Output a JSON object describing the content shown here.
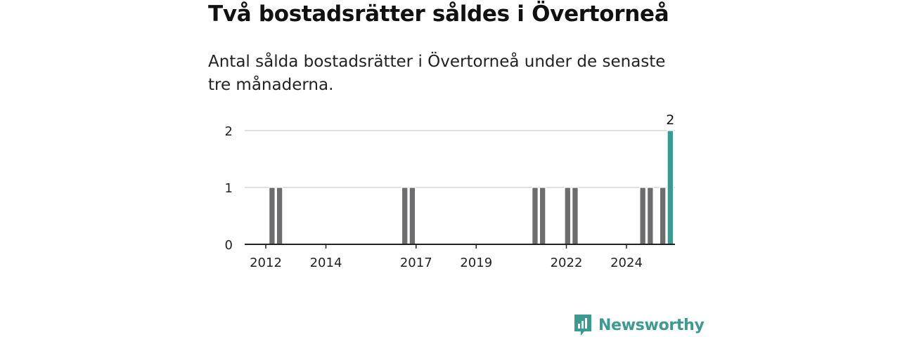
{
  "header": {
    "title": "Två bostadsrätter såldes i Övertorneå",
    "subtitle": "Antal sålda bostadsrätter i Övertorneå under de senaste tre månaderna."
  },
  "brand": {
    "name": "Newsworthy",
    "icon": "bar-chart-bubble-icon",
    "color": "#3b9b91"
  },
  "colors": {
    "bar": "#6d6d6f",
    "highlight": "#3b9b91",
    "grid": "#d6d6d6",
    "axis": "#222222"
  },
  "chart_data": {
    "type": "bar",
    "title": "Två bostadsrätter såldes i Övertorneå",
    "subtitle": "Antal sålda bostadsrätter i Övertorneå under de senaste tre månaderna.",
    "xlabel": "",
    "ylabel": "",
    "ylim": [
      0,
      2
    ],
    "yticks": [
      0,
      1,
      2
    ],
    "xticks": [
      "2012",
      "2014",
      "2017",
      "2019",
      "2022",
      "2024"
    ],
    "grid": true,
    "series": [
      {
        "values": [
          {
            "period": "2012-03",
            "value": 1
          },
          {
            "period": "2012-06",
            "value": 1
          },
          {
            "period": "2016-08",
            "value": 1
          },
          {
            "period": "2016-11",
            "value": 1
          },
          {
            "period": "2020-12",
            "value": 1
          },
          {
            "period": "2021-03",
            "value": 1
          },
          {
            "period": "2022-01",
            "value": 1
          },
          {
            "period": "2022-04",
            "value": 1
          },
          {
            "period": "2024-07",
            "value": 1
          },
          {
            "period": "2024-10",
            "value": 1
          },
          {
            "period": "2025-03",
            "value": 1
          },
          {
            "period": "2025-06",
            "value": 2,
            "highlight": true,
            "label": "2"
          }
        ]
      }
    ]
  }
}
